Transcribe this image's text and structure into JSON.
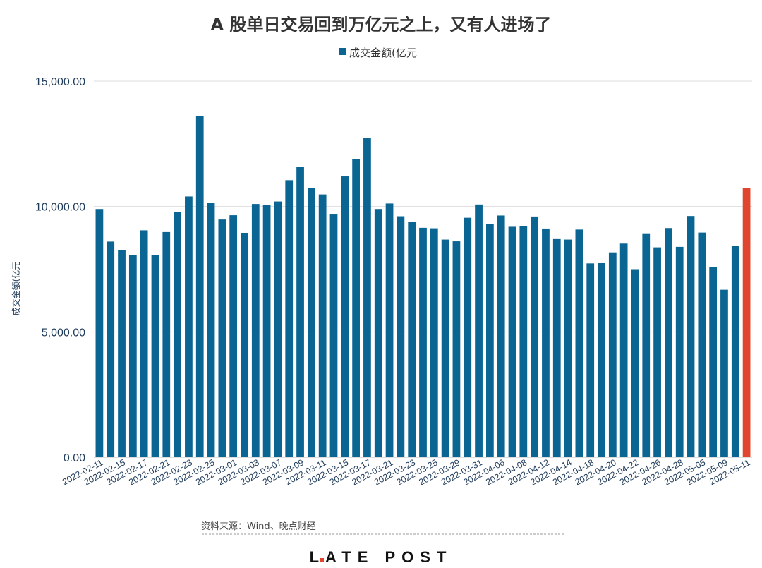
{
  "chart_data": {
    "type": "bar",
    "title": "A 股单日交易回到万亿元之上，又有人进场了",
    "legend": "成交金额(亿元",
    "ylabel": "成交金额(亿元",
    "ylim": [
      0,
      15000
    ],
    "yticks": [
      "0.00",
      "5,000.00",
      "10,000.00",
      "15,000.00"
    ],
    "ytick_values": [
      0,
      5000,
      10000,
      15000
    ],
    "grid": true,
    "legend_position": "top-center",
    "series": [
      {
        "name": "成交金额(亿元",
        "color": "#0b6593",
        "highlight_color": "#e0452f",
        "values": [
          9900,
          8600,
          8250,
          8050,
          9050,
          8050,
          8980,
          9770,
          10400,
          13620,
          10150,
          9480,
          9650,
          8950,
          10100,
          10050,
          10200,
          11050,
          11580,
          10750,
          10480,
          9680,
          11200,
          11900,
          12720,
          9900,
          10120,
          9610,
          9380,
          9150,
          9130,
          8680,
          8610,
          9550,
          10080,
          9310,
          9640,
          9190,
          9220,
          9600,
          9120,
          8700,
          8680,
          9080,
          7730,
          7740,
          8170,
          8520,
          7500,
          8930,
          8370,
          9140,
          8390,
          9620,
          8960,
          7580,
          6680,
          8430,
          10750
        ]
      }
    ],
    "x_tick_labels": [
      "2022-02-11",
      "2022-02-15",
      "2022-02-17",
      "2022-02-21",
      "2022-02-23",
      "2022-02-25",
      "2022-03-01",
      "2022-03-03",
      "2022-03-07",
      "2022-03-09",
      "2022-03-11",
      "2022-03-15",
      "2022-03-17",
      "2022-03-21",
      "2022-03-23",
      "2022-03-25",
      "2022-03-29",
      "2022-03-31",
      "2022-04-06",
      "2022-04-08",
      "2022-04-12",
      "2022-04-14",
      "2022-04-18",
      "2022-04-20",
      "2022-04-22",
      "2022-04-26",
      "2022-04-28",
      "2022-05-05",
      "2022-05-09",
      "2022-05-11"
    ]
  },
  "source": "资料来源：Wind、晚点财经",
  "brand": "LATE POST",
  "colors": {
    "bar": "#0b6593",
    "highlight": "#e0452f",
    "grid": "#dddddd",
    "brand_accent": "#e0452f"
  }
}
